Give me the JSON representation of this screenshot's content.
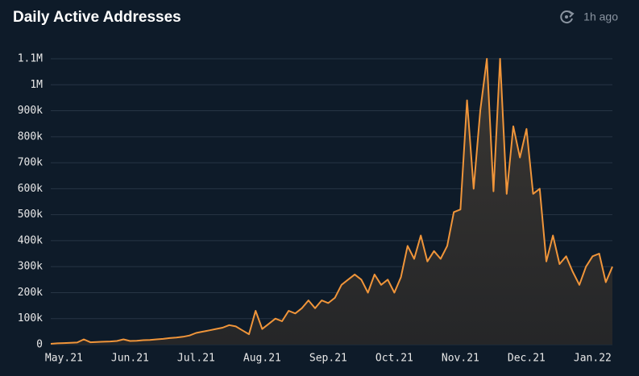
{
  "header": {
    "updated": "1h ago"
  },
  "chart_data": {
    "type": "area",
    "title": "Daily Active Addresses",
    "categories": [
      null,
      null,
      "May.21",
      null,
      null,
      null,
      null,
      null,
      null,
      null,
      null,
      null,
      "Jun.21",
      null,
      null,
      null,
      null,
      null,
      null,
      null,
      null,
      null,
      "Jul.21",
      null,
      null,
      null,
      null,
      null,
      null,
      null,
      null,
      null,
      "Aug.21",
      null,
      null,
      null,
      null,
      null,
      null,
      null,
      null,
      null,
      "Sep.21",
      null,
      null,
      null,
      null,
      null,
      null,
      null,
      null,
      null,
      "Oct.21",
      null,
      null,
      null,
      null,
      null,
      null,
      null,
      null,
      null,
      "Nov.21",
      null,
      null,
      null,
      null,
      null,
      null,
      null,
      null,
      null,
      "Dec.21",
      null,
      null,
      null,
      null,
      null,
      null,
      null,
      null,
      null,
      "Jan.22",
      null,
      null,
      null
    ],
    "values": [
      3000,
      5000,
      6000,
      7000,
      8000,
      20000,
      9000,
      10000,
      11000,
      12000,
      14000,
      20000,
      14000,
      15000,
      17000,
      18000,
      20000,
      22000,
      25000,
      27000,
      30000,
      35000,
      45000,
      50000,
      55000,
      60000,
      65000,
      75000,
      70000,
      55000,
      40000,
      130000,
      60000,
      80000,
      100000,
      90000,
      130000,
      120000,
      140000,
      170000,
      140000,
      170000,
      160000,
      180000,
      230000,
      250000,
      270000,
      250000,
      200000,
      270000,
      230000,
      250000,
      200000,
      260000,
      380000,
      330000,
      420000,
      320000,
      360000,
      330000,
      380000,
      510000,
      520000,
      940000,
      600000,
      900000,
      1100000,
      590000,
      1100000,
      580000,
      840000,
      720000,
      830000,
      580000,
      600000,
      320000,
      420000,
      310000,
      340000,
      280000,
      230000,
      300000,
      340000,
      350000,
      240000,
      300000
    ],
    "color": "#f0953a",
    "ylim": [
      0,
      1100000
    ],
    "yticks": [
      0,
      {
        "value": 100000,
        "label": "100k"
      },
      {
        "value": 200000,
        "label": "200k"
      },
      {
        "value": 300000,
        "label": "300k"
      },
      {
        "value": 400000,
        "label": "400k"
      },
      {
        "value": 500000,
        "label": "500k"
      },
      {
        "value": 600000,
        "label": "600k"
      },
      {
        "value": 700000,
        "label": "700k"
      },
      {
        "value": 800000,
        "label": "800k"
      },
      {
        "value": 900000,
        "label": "900k"
      },
      {
        "value": 1000000,
        "label": "1M"
      },
      {
        "value": 1100000,
        "label": "1.1M"
      }
    ],
    "grid": true
  }
}
